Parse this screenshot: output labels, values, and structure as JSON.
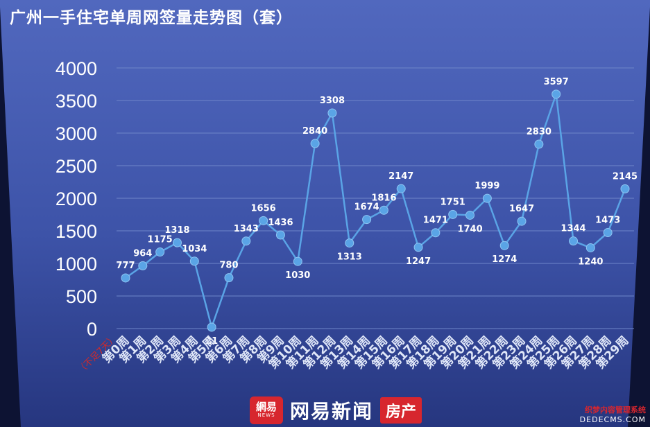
{
  "title": "广州一手住宅单周网签量走势图（套）",
  "colors": {
    "line": "#5aa4e6",
    "marker": "#5aa4e6",
    "grid": "#6f86c9",
    "panel_top": "#5068bd",
    "panel_bottom": "#2a3c8c",
    "outer_bg": "#0d1333",
    "brand_red": "#d7262e"
  },
  "chart_data": {
    "type": "line",
    "title": "广州一手住宅单周网签量走势图（套）",
    "xlabel": "",
    "ylabel": "",
    "ylim": [
      0,
      4000
    ],
    "yticks": [
      0,
      500,
      1000,
      1500,
      2000,
      2500,
      3000,
      3500,
      4000
    ],
    "grid": true,
    "legend": "none",
    "categories": [
      "第0周",
      "第1周",
      "第2周",
      "第3周",
      "第4周",
      "第5周",
      "第6周",
      "第7周",
      "第8周",
      "第9周",
      "第10周",
      "第11周",
      "第12周",
      "第13周",
      "第14周",
      "第15周",
      "第16周",
      "第17周",
      "第18周",
      "第19周",
      "第20周",
      "第21周",
      "第22周",
      "第23周",
      "第24周",
      "第25周",
      "第26周",
      "第27周",
      "第28周",
      "第29周"
    ],
    "category_note": "（不足7天）",
    "values": [
      777,
      964,
      1175,
      1318,
      1034,
      21,
      780,
      1343,
      1656,
      1436,
      1030,
      2840,
      3308,
      1313,
      1674,
      1816,
      2147,
      1247,
      1471,
      1751,
      1740,
      1999,
      1274,
      1647,
      2830,
      3597,
      1344,
      1240,
      1473,
      2145
    ],
    "data_labels": [
      "777",
      "964",
      "1175",
      "1318",
      "1034",
      "21",
      "780",
      "1343",
      "1656",
      "1436",
      "1030",
      "2840",
      "3308",
      "1313",
      "1674",
      "1816",
      "2147",
      "1247",
      "1471",
      "1751",
      "1740",
      "1999",
      "1274",
      "1647",
      "2830",
      "3597",
      "1344",
      "1240",
      "1473",
      "2145"
    ]
  },
  "footer": {
    "logo_text": "網易",
    "logo_sub": "NEWS",
    "brand": "网易新闻",
    "section": "房产"
  },
  "watermark": {
    "line1": "织梦内容管理系统",
    "line2": "DEDECMS.COM"
  }
}
